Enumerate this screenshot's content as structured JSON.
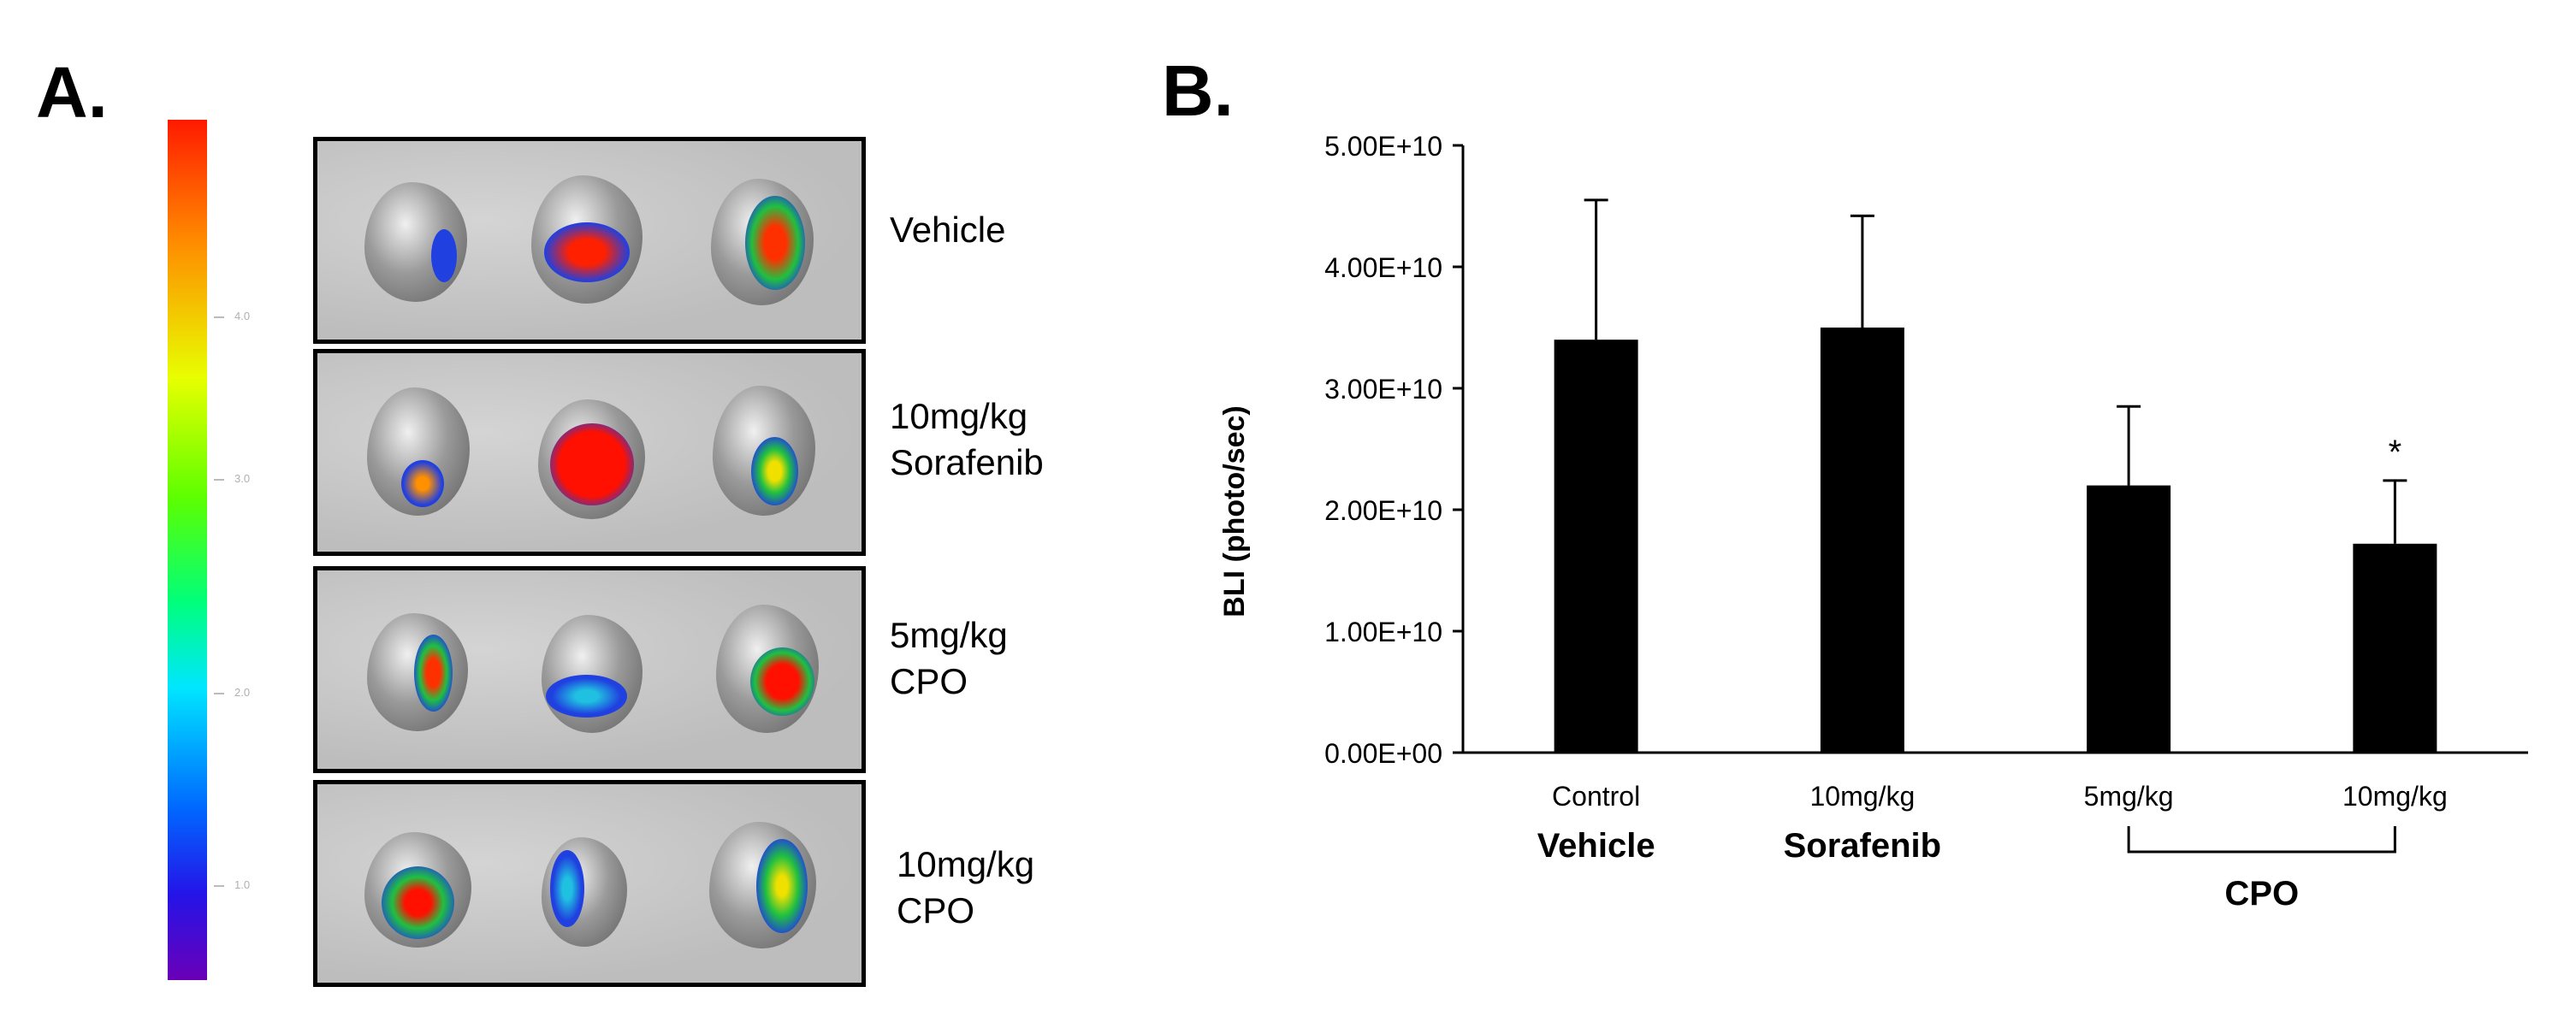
{
  "panel_a": {
    "letter": "A.",
    "scale_ticks": [
      "4.0",
      "3.0",
      "2.0",
      "1.0"
    ],
    "rows": [
      {
        "label_lines": [
          "Vehicle"
        ]
      },
      {
        "label_lines": [
          "10mg/kg",
          "Sorafenib"
        ]
      },
      {
        "label_lines": [
          "5mg/kg",
          "CPO"
        ]
      },
      {
        "label_lines": [
          "10mg/kg",
          "CPO"
        ]
      }
    ]
  },
  "panel_b": {
    "letter": "B.",
    "group_label": "CPO"
  },
  "chart_data": {
    "type": "bar",
    "categories": [
      "Control",
      "10mg/kg",
      "5mg/kg",
      "10mg/kg"
    ],
    "category_sublabels": [
      "Vehicle",
      "Sorafenib",
      "",
      ""
    ],
    "values": [
      34000000000.0,
      35000000000.0,
      22000000000.0,
      17200000000.0
    ],
    "error_upper": [
      11500000000.0,
      9200000000.0,
      6500000000.0,
      5200000000.0
    ],
    "significance": [
      "",
      "",
      "",
      "*"
    ],
    "ylabel": "BLI (photo/sec)",
    "ylim": [
      0,
      50000000000.0
    ],
    "yticks": [
      0,
      10000000000.0,
      20000000000.0,
      30000000000.0,
      40000000000.0,
      50000000000.0
    ],
    "ytick_labels": [
      "0.00E+00",
      "1.00E+10",
      "2.00E+10",
      "3.00E+10",
      "4.00E+10",
      "5.00E+10"
    ],
    "bar_color": "#000000",
    "grid": false
  }
}
